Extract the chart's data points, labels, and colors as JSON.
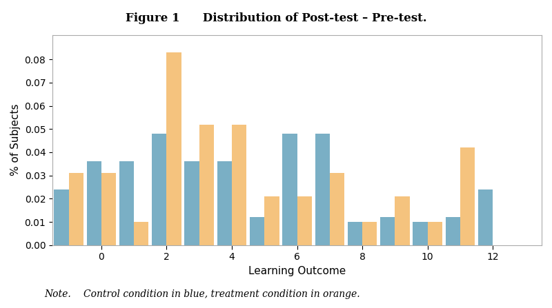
{
  "title": "Figure 1  Distribution of Post-test – Pre-test.",
  "xlabel": "Learning Outcome",
  "ylabel": "% of Subjects",
  "note": "Note.  Control condition in blue, treatment condition in orange.",
  "x_values": [
    -1,
    0,
    1,
    2,
    3,
    4,
    5,
    6,
    7,
    8,
    9,
    10,
    11,
    12
  ],
  "x_ticks_show": [
    0,
    2,
    4,
    6,
    8,
    10,
    12
  ],
  "blue_values": [
    0.024,
    0.036,
    0.036,
    0.048,
    0.036,
    0.036,
    0.012,
    0.048,
    0.048,
    0.01,
    0.012,
    0.01,
    0.012,
    0.024
  ],
  "orange_values": [
    0.031,
    0.031,
    0.01,
    0.083,
    0.052,
    0.052,
    0.021,
    0.021,
    0.031,
    0.01,
    0.021,
    0.01,
    0.042,
    0.0
  ],
  "blue_color": "#7aafc5",
  "orange_color": "#f5c37e",
  "bar_width": 0.45,
  "ylim": [
    0,
    0.0905
  ],
  "xlim": [
    -1.5,
    13.5
  ],
  "yticks": [
    0.0,
    0.01,
    0.02,
    0.03,
    0.04,
    0.05,
    0.06,
    0.07,
    0.08
  ],
  "background_color": "#ffffff",
  "fig_width": 8.0,
  "fig_height": 4.47,
  "dpi": 100,
  "title_fontsize": 12,
  "axis_label_fontsize": 11,
  "tick_fontsize": 10,
  "note_fontsize": 10
}
